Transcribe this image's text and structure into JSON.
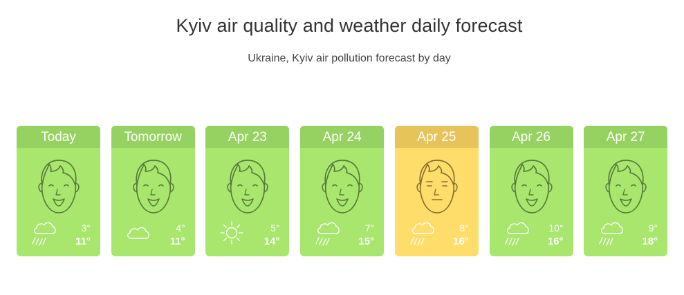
{
  "header": {
    "title": "Kyiv air quality and weather daily forecast",
    "subtitle": "Ukraine, Kyiv air pollution forecast by day"
  },
  "colors": {
    "good": "#a8e66e",
    "good_header": "#95d262",
    "moderate": "#fedd6a",
    "moderate_header": "#e6c45a",
    "face_stroke_good": "#5a7a3c",
    "face_stroke_moderate": "#8a7030"
  },
  "days": [
    {
      "label": "Today",
      "aqi_level": "good",
      "face": "smile-face-icon",
      "weather": "rain-icon",
      "low": "3°",
      "high": "11°"
    },
    {
      "label": "Tomorrow",
      "aqi_level": "good",
      "face": "smile-face-icon",
      "weather": "cloud-icon",
      "low": "4°",
      "high": "11°"
    },
    {
      "label": "Apr 23",
      "aqi_level": "good",
      "face": "smile-face-icon",
      "weather": "sun-icon",
      "low": "5°",
      "high": "14°"
    },
    {
      "label": "Apr 24",
      "aqi_level": "good",
      "face": "smile-face-icon",
      "weather": "rain-icon",
      "low": "7°",
      "high": "15°"
    },
    {
      "label": "Apr 25",
      "aqi_level": "moderate",
      "face": "neutral-face-icon",
      "weather": "rain-icon",
      "low": "8°",
      "high": "16°"
    },
    {
      "label": "Apr 26",
      "aqi_level": "good",
      "face": "smile-face-icon",
      "weather": "rain-icon",
      "low": "10°",
      "high": "16°"
    },
    {
      "label": "Apr 27",
      "aqi_level": "good",
      "face": "smile-face-icon",
      "weather": "rain-icon",
      "low": "9°",
      "high": "18°"
    }
  ]
}
